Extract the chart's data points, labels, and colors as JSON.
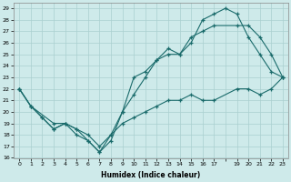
{
  "xlabel": "Humidex (Indice chaleur)",
  "background_color": "#ceeaea",
  "grid_color": "#aacfcf",
  "line_color": "#1a6b6b",
  "xlim": [
    -0.5,
    23.5
  ],
  "ylim": [
    16,
    29.5
  ],
  "curves": [
    {
      "x": [
        0,
        1,
        3,
        4,
        5,
        6,
        7,
        8,
        9,
        10,
        11,
        12,
        13,
        14,
        15,
        16,
        17,
        18,
        19,
        20,
        21,
        22,
        23
      ],
      "y": [
        22,
        20.5,
        19,
        19,
        18.5,
        17.5,
        16.5,
        18,
        20,
        23,
        23.5,
        24.5,
        25.5,
        25,
        26,
        28,
        28.5,
        29,
        28.5,
        26.5,
        25,
        23.5,
        23
      ]
    },
    {
      "x": [
        0,
        1,
        2,
        3,
        4,
        5,
        6,
        7,
        8,
        9,
        10,
        11,
        12,
        13,
        14,
        15,
        16,
        17,
        19,
        20,
        21,
        22,
        23
      ],
      "y": [
        22,
        20.5,
        19.5,
        18.5,
        19,
        18,
        17.5,
        16.5,
        17.5,
        20,
        21.5,
        23,
        24.5,
        25,
        25,
        26.5,
        27,
        27.5,
        27.5,
        27.5,
        26.5,
        25,
        23
      ]
    },
    {
      "x": [
        0,
        1,
        2,
        3,
        4,
        5,
        6,
        7,
        8,
        9,
        10,
        11,
        12,
        13,
        14,
        15,
        16,
        17,
        19,
        20,
        21,
        22,
        23
      ],
      "y": [
        22,
        20.5,
        19.5,
        18.5,
        19,
        18.5,
        18,
        17,
        18,
        19,
        19.5,
        20,
        20.5,
        21,
        21,
        21.5,
        21,
        21,
        22,
        22,
        21.5,
        22,
        23
      ]
    }
  ]
}
